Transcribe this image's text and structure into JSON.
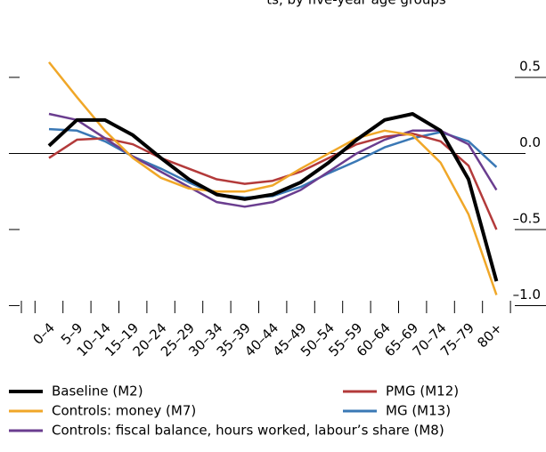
{
  "chart_data": {
    "type": "line",
    "title": "ts, by five-year age groups",
    "categories": [
      "0–4",
      "5–9",
      "10–14",
      "15–19",
      "20–24",
      "25–29",
      "30–34",
      "35–39",
      "40–44",
      "45–49",
      "50–54",
      "55–59",
      "60–64",
      "65–69",
      "70–74",
      "75–79",
      "80+"
    ],
    "series": [
      {
        "name": "Baseline (M2)",
        "color": "#000000",
        "values": [
          0.05,
          0.22,
          0.22,
          0.12,
          -0.03,
          -0.17,
          -0.27,
          -0.3,
          -0.27,
          -0.19,
          -0.06,
          0.09,
          0.22,
          0.26,
          0.15,
          -0.17,
          -0.84
        ]
      },
      {
        "name": "Controls: money (M7)",
        "color": "#f0a728",
        "values": [
          0.6,
          0.37,
          0.15,
          -0.03,
          -0.16,
          -0.23,
          -0.25,
          -0.25,
          -0.21,
          -0.1,
          0.0,
          0.1,
          0.15,
          0.12,
          -0.06,
          -0.4,
          -0.93
        ]
      },
      {
        "name": "Controls: fiscal balance, hours worked, labour’s share (M8)",
        "color": "#6a3d8f",
        "values": [
          0.26,
          0.22,
          0.1,
          -0.02,
          -0.12,
          -0.22,
          -0.32,
          -0.35,
          -0.32,
          -0.24,
          -0.12,
          0.0,
          0.09,
          0.15,
          0.15,
          0.06,
          -0.24
        ]
      },
      {
        "name": "PMG (M12)",
        "color": "#b33a3a",
        "values": [
          -0.03,
          0.09,
          0.1,
          0.06,
          -0.03,
          -0.1,
          -0.17,
          -0.2,
          -0.18,
          -0.12,
          -0.03,
          0.06,
          0.11,
          0.13,
          0.08,
          -0.08,
          -0.5
        ]
      },
      {
        "name": "MG (M13)",
        "color": "#3a78b5",
        "values": [
          0.16,
          0.15,
          0.08,
          -0.02,
          -0.1,
          -0.19,
          -0.27,
          -0.29,
          -0.28,
          -0.22,
          -0.13,
          -0.05,
          0.04,
          0.1,
          0.14,
          0.08,
          -0.09
        ]
      }
    ],
    "ylim": [
      -1.05,
      0.95
    ],
    "yticks": [
      {
        "value": -1,
        "label": "–1.0"
      },
      {
        "value": -0.5,
        "label": "–0.5"
      },
      {
        "value": 0,
        "label": "0.0"
      },
      0.5
    ]
  }
}
